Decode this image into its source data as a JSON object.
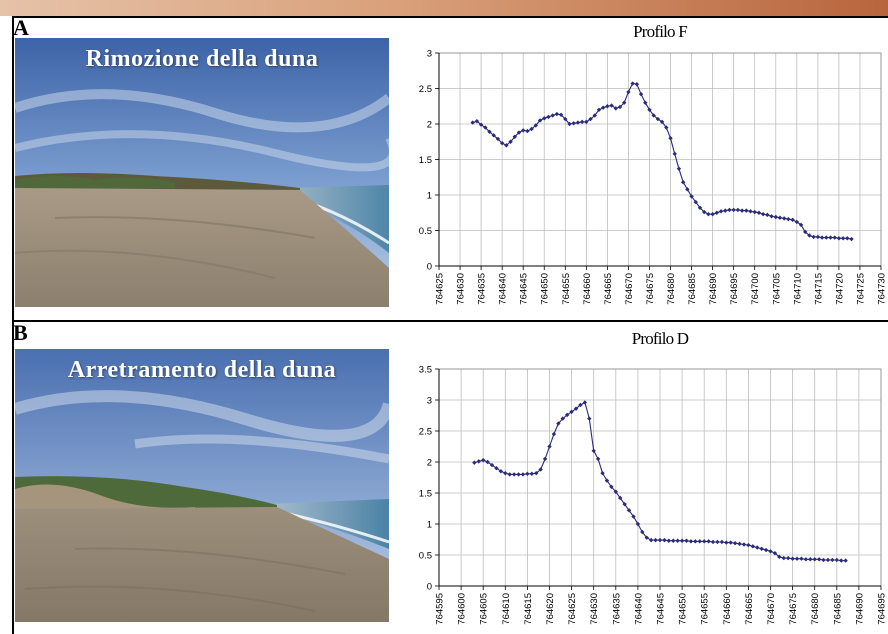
{
  "panels": [
    {
      "letter": "A",
      "photo_caption": "Rimozione della duna",
      "chart_title": "Profilo F"
    },
    {
      "letter": "B",
      "photo_caption": "Arretramento della duna",
      "chart_title": "Profilo D"
    }
  ],
  "chart_data": [
    {
      "type": "line",
      "title": "Profilo F",
      "xlabel": "",
      "ylabel": "",
      "xlim": [
        764625,
        764730
      ],
      "ylim": [
        0,
        3
      ],
      "x_ticks": [
        764625,
        764630,
        764635,
        764640,
        764645,
        764650,
        764655,
        764660,
        764665,
        764670,
        764675,
        764680,
        764685,
        764690,
        764695,
        764700,
        764705,
        764710,
        764715,
        764720,
        764725,
        764730
      ],
      "y_ticks": [
        0,
        0.5,
        1,
        1.5,
        2,
        2.5,
        3
      ],
      "y_tick_labels": [
        "0",
        "0.5",
        "1",
        "1.5",
        "2",
        "2.5",
        "3"
      ],
      "grid": true,
      "legend": "none",
      "line_color": "#2b2b7a",
      "series": [
        {
          "x": [
            764633,
            764634,
            764635,
            764636,
            764637,
            764638,
            764639,
            764640,
            764641,
            764642,
            764643,
            764644,
            764645,
            764646,
            764647,
            764648,
            764649,
            764650,
            764651,
            764652,
            764653,
            764654,
            764655,
            764656,
            764657,
            764658,
            764659,
            764660,
            764661,
            764662,
            764663,
            764664,
            764665,
            764666,
            764667,
            764668,
            764669,
            764670,
            764671,
            764672,
            764673,
            764674,
            764675,
            764676,
            764677,
            764678,
            764679,
            764680,
            764681,
            764682,
            764683,
            764684,
            764685,
            764686,
            764687,
            764688,
            764689,
            764690,
            764691,
            764692,
            764693,
            764694,
            764695,
            764696,
            764697,
            764698,
            764699,
            764700,
            764701,
            764702,
            764703,
            764704,
            764705,
            764706,
            764707,
            764708,
            764709,
            764710,
            764711,
            764712,
            764713,
            764714,
            764715,
            764716,
            764717,
            764718,
            764719,
            764720,
            764721,
            764722,
            764723
          ],
          "y": [
            2.02,
            2.04,
            1.99,
            1.95,
            1.89,
            1.84,
            1.79,
            1.73,
            1.7,
            1.75,
            1.82,
            1.88,
            1.91,
            1.9,
            1.93,
            1.98,
            2.05,
            2.08,
            2.1,
            2.12,
            2.14,
            2.13,
            2.07,
            2.0,
            2.01,
            2.02,
            2.03,
            2.03,
            2.07,
            2.12,
            2.2,
            2.23,
            2.25,
            2.26,
            2.22,
            2.24,
            2.3,
            2.45,
            2.57,
            2.56,
            2.42,
            2.3,
            2.2,
            2.12,
            2.07,
            2.03,
            1.95,
            1.8,
            1.58,
            1.37,
            1.18,
            1.08,
            0.98,
            0.9,
            0.82,
            0.76,
            0.73,
            0.73,
            0.75,
            0.77,
            0.78,
            0.79,
            0.79,
            0.79,
            0.78,
            0.78,
            0.77,
            0.76,
            0.75,
            0.73,
            0.72,
            0.7,
            0.69,
            0.68,
            0.67,
            0.66,
            0.65,
            0.62,
            0.58,
            0.48,
            0.43,
            0.41,
            0.41,
            0.4,
            0.4,
            0.4,
            0.4,
            0.39,
            0.39,
            0.39,
            0.38
          ]
        }
      ]
    },
    {
      "type": "line",
      "title": "Profilo D",
      "xlabel": "",
      "ylabel": "",
      "xlim": [
        764595,
        764695
      ],
      "ylim": [
        0,
        3.5
      ],
      "x_ticks": [
        764595,
        764600,
        764605,
        764610,
        764615,
        764620,
        764625,
        764630,
        764635,
        764640,
        764645,
        764650,
        764655,
        764660,
        764665,
        764670,
        764675,
        764680,
        764685,
        764690,
        764695
      ],
      "y_ticks": [
        0,
        0.5,
        1,
        1.5,
        2,
        2.5,
        3,
        3.5
      ],
      "y_tick_labels": [
        "0",
        "0.5",
        "1",
        "1.5",
        "2",
        "2.5",
        "3",
        "3.5"
      ],
      "grid": true,
      "legend": "none",
      "line_color": "#2b2b7a",
      "series": [
        {
          "x": [
            764603,
            764604,
            764605,
            764606,
            764607,
            764608,
            764609,
            764610,
            764611,
            764612,
            764613,
            764614,
            764615,
            764616,
            764617,
            764618,
            764619,
            764620,
            764621,
            764622,
            764623,
            764624,
            764625,
            764626,
            764627,
            764628,
            764629,
            764630,
            764631,
            764632,
            764633,
            764634,
            764635,
            764636,
            764637,
            764638,
            764639,
            764640,
            764641,
            764642,
            764643,
            764644,
            764645,
            764646,
            764647,
            764648,
            764649,
            764650,
            764651,
            764652,
            764653,
            764654,
            764655,
            764656,
            764657,
            764658,
            764659,
            764660,
            764661,
            764662,
            764663,
            764664,
            764665,
            764666,
            764667,
            764668,
            764669,
            764670,
            764671,
            764672,
            764673,
            764674,
            764675,
            764676,
            764677,
            764678,
            764679,
            764680,
            764681,
            764682,
            764683,
            764684,
            764685,
            764686,
            764687
          ],
          "y": [
            1.99,
            2.01,
            2.03,
            2.0,
            1.95,
            1.9,
            1.85,
            1.82,
            1.8,
            1.8,
            1.8,
            1.8,
            1.81,
            1.81,
            1.82,
            1.88,
            2.05,
            2.25,
            2.45,
            2.62,
            2.7,
            2.76,
            2.81,
            2.86,
            2.92,
            2.96,
            2.7,
            2.18,
            2.05,
            1.82,
            1.7,
            1.6,
            1.52,
            1.42,
            1.32,
            1.22,
            1.12,
            1.0,
            0.87,
            0.78,
            0.74,
            0.74,
            0.74,
            0.74,
            0.73,
            0.73,
            0.73,
            0.73,
            0.73,
            0.72,
            0.72,
            0.72,
            0.72,
            0.72,
            0.71,
            0.71,
            0.71,
            0.7,
            0.7,
            0.69,
            0.68,
            0.67,
            0.66,
            0.64,
            0.62,
            0.6,
            0.58,
            0.56,
            0.53,
            0.47,
            0.45,
            0.45,
            0.44,
            0.44,
            0.44,
            0.43,
            0.43,
            0.43,
            0.43,
            0.42,
            0.42,
            0.42,
            0.42,
            0.41,
            0.41
          ]
        }
      ]
    }
  ]
}
